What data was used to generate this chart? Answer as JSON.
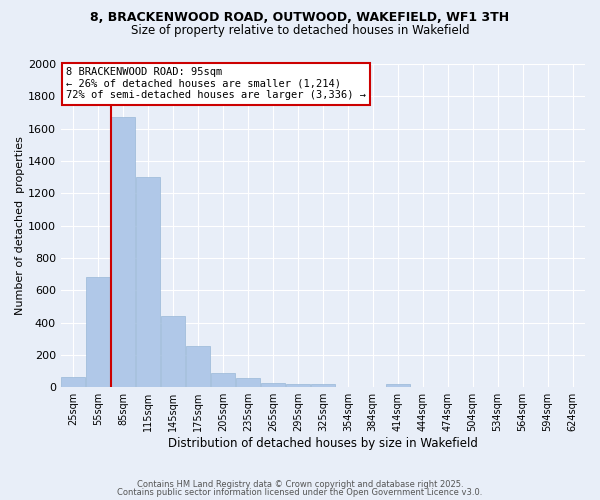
{
  "title": "8, BRACKENWOOD ROAD, OUTWOOD, WAKEFIELD, WF1 3TH",
  "subtitle": "Size of property relative to detached houses in Wakefield",
  "xlabel": "Distribution of detached houses by size in Wakefield",
  "ylabel": "Number of detached  properties",
  "categories": [
    "25sqm",
    "55sqm",
    "85sqm",
    "115sqm",
    "145sqm",
    "175sqm",
    "205sqm",
    "235sqm",
    "265sqm",
    "295sqm",
    "325sqm",
    "354sqm",
    "384sqm",
    "414sqm",
    "444sqm",
    "474sqm",
    "504sqm",
    "534sqm",
    "564sqm",
    "594sqm",
    "624sqm"
  ],
  "values": [
    65,
    680,
    1670,
    1300,
    440,
    255,
    85,
    55,
    28,
    22,
    18,
    0,
    0,
    18,
    0,
    0,
    0,
    0,
    0,
    0,
    0
  ],
  "bar_color": "#b0c8e8",
  "bar_edgecolor": "#9ab8d8",
  "subject_bin_index": 2,
  "subject_label": "8 BRACKENWOOD ROAD: 95sqm",
  "pct_smaller": "← 26% of detached houses are smaller (1,214)",
  "pct_larger": "72% of semi-detached houses are larger (3,336) →",
  "red_line_color": "#cc0000",
  "annotation_box_edgecolor": "#cc0000",
  "background_color": "#e8eef8",
  "grid_color": "#ffffff",
  "ylim": [
    0,
    2000
  ],
  "yticks": [
    0,
    200,
    400,
    600,
    800,
    1000,
    1200,
    1400,
    1600,
    1800,
    2000
  ],
  "footer1": "Contains HM Land Registry data © Crown copyright and database right 2025.",
  "footer2": "Contains public sector information licensed under the Open Government Licence v3.0."
}
